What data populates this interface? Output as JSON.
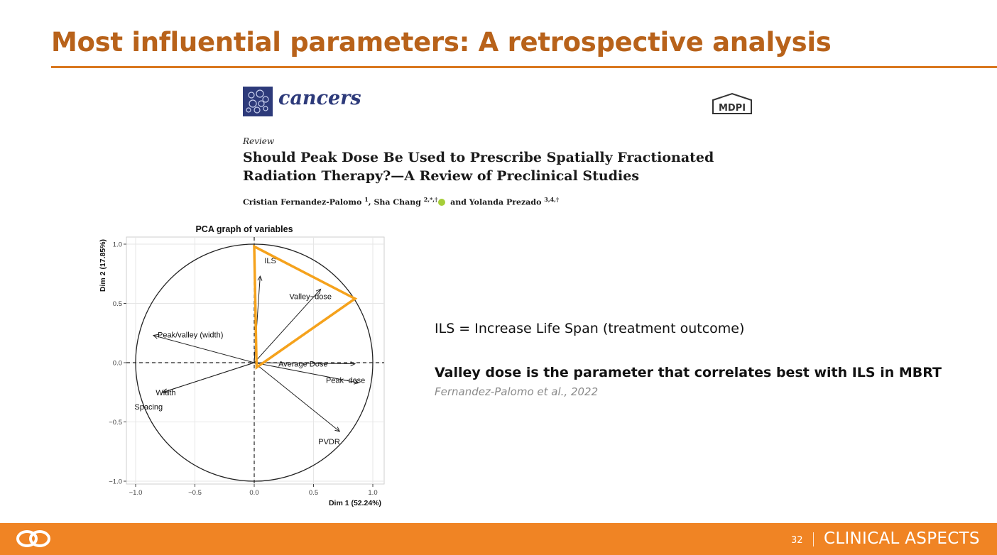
{
  "slide": {
    "title": "Most influential parameters: A retrospective analysis",
    "accent_color": "#d9781f",
    "title_color": "#b8621a"
  },
  "paper": {
    "journal": "cancers",
    "journal_logo_icon": "cancers-journal-logo",
    "publisher": "MDPI",
    "type": "Review",
    "title_line1": "Should Peak Dose Be Used to Prescribe Spatially Fractionated",
    "title_line2": "Radiation Therapy?—A Review of Preclinical Studies",
    "authors": [
      {
        "name": "Cristian Fernandez-Palomo",
        "affil": "1"
      },
      {
        "name": "Sha Chang",
        "affil": "2,*,†"
      },
      {
        "name": "Yolanda Prezado",
        "affil": "3,4,†"
      }
    ],
    "authors_separator": ", ",
    "authors_and": " and ",
    "orcid_icon": "orcid-icon"
  },
  "chart_data": {
    "type": "scatter",
    "title": "PCA graph of variables",
    "xlabel": "Dim 1 (52.24%)",
    "ylabel": "Dim 2 (17.85%)",
    "xlim": [
      -1.0,
      1.0
    ],
    "ylim": [
      -1.0,
      1.0
    ],
    "xticks": [
      "−1.0",
      "−0.5",
      "0.0",
      "0.5",
      "1.0"
    ],
    "yticks": [
      "−1.0",
      "−0.5",
      "0.0",
      "0.5",
      "1.0"
    ],
    "grid": true,
    "correlation_circle": true,
    "variables": [
      {
        "name": "ILS",
        "x": 0.05,
        "y": 0.73
      },
      {
        "name": "Valley−dose",
        "x": 0.56,
        "y": 0.62
      },
      {
        "name": "Peak/valley (width)",
        "x": -0.85,
        "y": 0.23
      },
      {
        "name": "Average Dose",
        "x": 0.85,
        "y": -0.01
      },
      {
        "name": "Peak−dose",
        "x": 0.88,
        "y": -0.17
      },
      {
        "name": "Width",
        "x": -0.77,
        "y": -0.25
      },
      {
        "name": "Spacing",
        "x": -0.77,
        "y": -0.25
      },
      {
        "name": "PVDR",
        "x": 0.72,
        "y": -0.58
      }
    ],
    "highlight_triangle": {
      "color": "#f5a21c",
      "points": [
        {
          "x": 0.0,
          "y": 0.98
        },
        {
          "x": 0.85,
          "y": 0.54
        },
        {
          "x": 0.02,
          "y": -0.04
        }
      ]
    }
  },
  "notes": {
    "definition": "ILS = Increase Life Span (treatment outcome)",
    "finding": "Valley dose is the parameter that correlates best with ILS in MBRT",
    "citation": "Fernandez-Palomo et al., 2022"
  },
  "footer": {
    "logo_icon": "brand-logo-icon",
    "page_number": "32",
    "section": "CLINICAL ASPECTS",
    "bar_color": "#f08424"
  }
}
